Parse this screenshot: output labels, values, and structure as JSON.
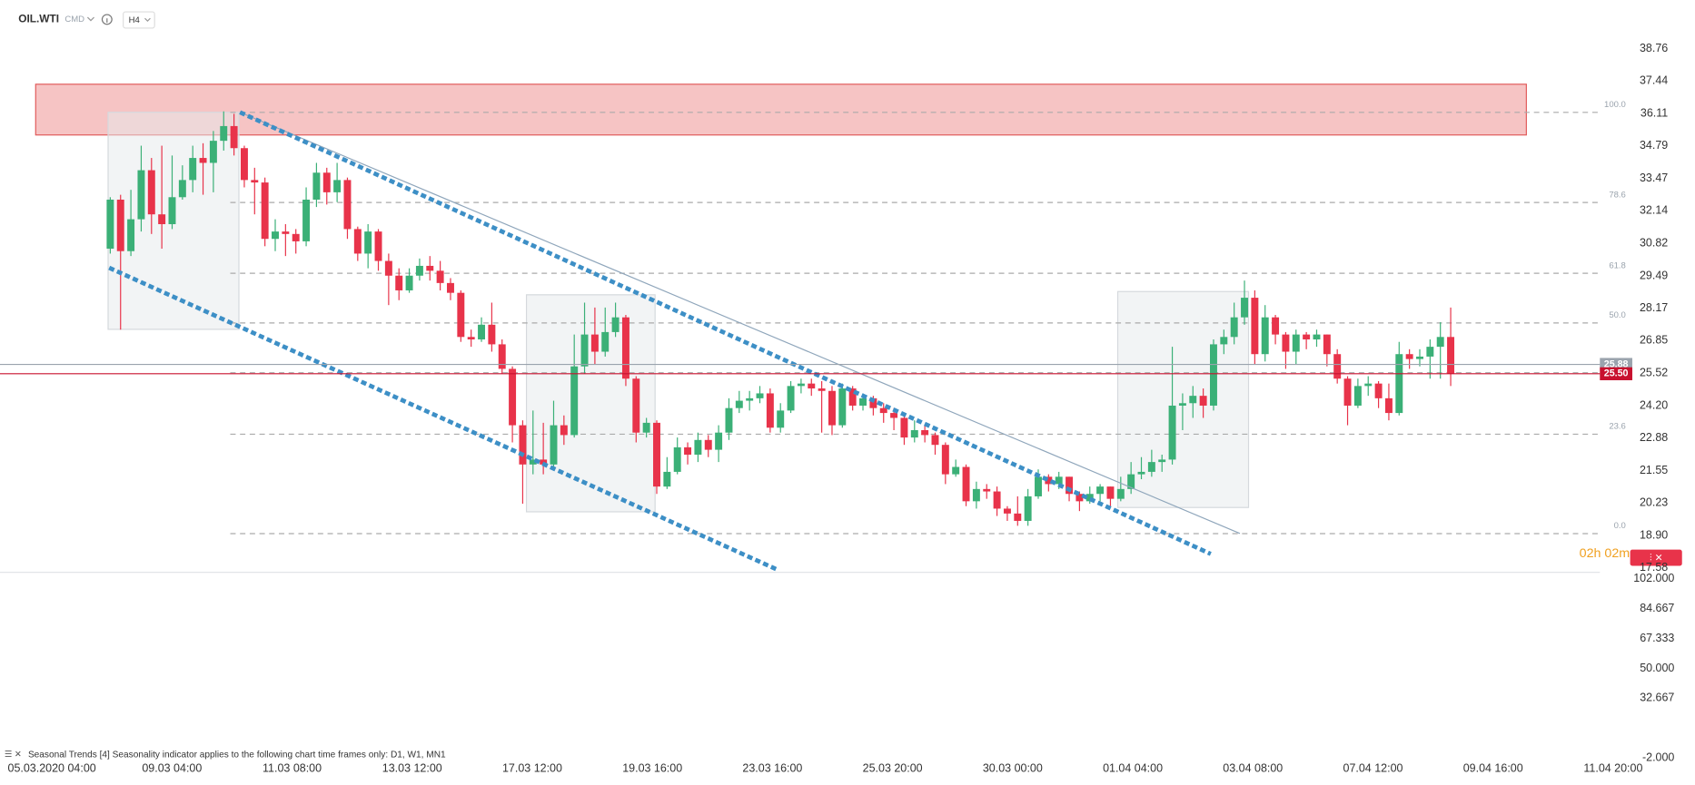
{
  "header": {
    "symbol": "OIL.WTI",
    "market": "CMD",
    "timeframe": "H4"
  },
  "chart_data": {
    "type": "candlestick",
    "open": [
      30.6,
      32.6,
      30.5,
      31.8,
      33.8,
      32.0,
      31.6,
      32.7,
      33.4,
      34.3,
      34.1,
      35.0,
      35.6,
      34.7,
      33.4,
      33.3,
      31.0,
      31.3,
      31.2,
      30.9,
      32.6,
      33.7,
      32.9,
      33.4,
      31.4,
      30.4,
      31.3,
      30.1,
      29.5,
      28.9,
      29.5,
      29.9,
      29.7,
      29.2,
      28.8,
      27.0,
      26.9,
      27.5,
      26.7,
      25.7,
      23.4,
      21.8,
      22.0,
      21.8,
      23.4,
      23.0,
      25.8,
      27.1,
      26.4,
      27.2,
      27.8,
      25.3,
      23.1,
      23.5,
      20.9,
      21.5,
      22.5,
      22.2,
      22.8,
      22.4,
      23.1,
      24.1,
      24.4,
      24.5,
      24.7,
      23.3,
      24.0,
      25.0,
      25.1,
      24.9,
      24.8,
      23.4,
      24.9,
      24.2,
      24.5,
      24.1,
      23.9,
      23.7,
      22.9,
      23.2,
      23.0,
      22.6,
      21.4,
      21.7,
      20.3,
      20.8,
      20.7,
      20.0,
      19.8,
      19.5,
      20.5,
      21.3,
      21.0,
      21.3,
      20.6,
      20.3,
      20.6,
      20.9,
      20.4,
      20.8,
      21.4,
      21.5,
      21.9,
      22.0,
      24.2,
      24.3,
      24.6,
      24.2,
      26.7,
      27.0,
      27.8,
      28.6,
      26.3,
      27.8,
      27.1,
      26.4,
      27.1,
      26.9,
      27.1,
      26.3,
      25.3,
      24.2,
      25.0,
      25.1,
      24.5,
      23.9,
      26.3,
      26.1,
      26.2,
      26.6,
      27.0
    ],
    "high": [
      32.7,
      32.8,
      33.0,
      34.8,
      34.3,
      34.8,
      34.4,
      34.0,
      34.8,
      34.9,
      35.4,
      36.2,
      36.1,
      34.8,
      33.9,
      33.5,
      31.8,
      31.6,
      31.4,
      33.1,
      34.1,
      33.9,
      34.1,
      33.5,
      31.5,
      31.6,
      31.4,
      30.4,
      29.8,
      29.8,
      30.2,
      30.3,
      30.1,
      29.4,
      28.9,
      27.3,
      27.8,
      28.4,
      26.9,
      25.8,
      23.6,
      24.0,
      23.5,
      24.4,
      23.8,
      27.1,
      28.4,
      28.2,
      28.2,
      28.4,
      27.9,
      25.4,
      23.7,
      23.6,
      22.1,
      22.9,
      22.7,
      23.1,
      23.0,
      23.4,
      24.5,
      24.8,
      24.8,
      25.0,
      24.9,
      24.3,
      25.2,
      25.3,
      25.3,
      25.2,
      25.0,
      25.1,
      25.0,
      24.7,
      24.6,
      24.3,
      24.1,
      23.9,
      23.6,
      23.4,
      23.1,
      22.7,
      22.0,
      21.8,
      21.1,
      21.0,
      20.9,
      20.1,
      20.5,
      20.8,
      21.6,
      21.4,
      21.5,
      21.3,
      20.7,
      20.9,
      21.0,
      20.9,
      21.3,
      21.9,
      22.1,
      22.4,
      22.2,
      26.6,
      24.7,
      25.0,
      24.9,
      26.9,
      27.3,
      28.4,
      29.3,
      28.9,
      28.3,
      27.9,
      27.2,
      27.3,
      27.2,
      27.3,
      27.1,
      26.5,
      25.4,
      25.3,
      25.4,
      25.2,
      25.1,
      26.8,
      26.5,
      26.5,
      26.9,
      27.6,
      28.2
    ],
    "low": [
      30.4,
      27.3,
      30.3,
      31.3,
      31.2,
      30.6,
      31.4,
      32.6,
      32.9,
      32.8,
      32.9,
      34.6,
      34.4,
      33.1,
      32.0,
      30.7,
      30.5,
      30.3,
      30.4,
      30.7,
      32.3,
      32.4,
      32.5,
      31.0,
      30.1,
      29.8,
      29.7,
      28.3,
      28.5,
      28.8,
      29.3,
      29.3,
      28.9,
      28.5,
      26.8,
      26.6,
      26.8,
      26.4,
      25.5,
      22.7,
      20.2,
      21.4,
      21.4,
      21.7,
      22.6,
      22.9,
      25.5,
      25.9,
      26.2,
      27.0,
      25.0,
      22.7,
      22.9,
      20.6,
      20.8,
      21.4,
      21.8,
      21.9,
      22.1,
      21.9,
      22.8,
      23.9,
      24.0,
      24.3,
      23.1,
      23.1,
      23.9,
      24.7,
      24.6,
      23.1,
      23.0,
      23.3,
      24.0,
      24.0,
      23.8,
      23.5,
      23.2,
      22.6,
      22.7,
      22.7,
      22.2,
      21.0,
      21.3,
      20.1,
      20.0,
      20.4,
      19.7,
      19.5,
      19.3,
      19.3,
      20.4,
      20.7,
      20.8,
      20.3,
      19.9,
      20.2,
      20.3,
      20.1,
      20.3,
      20.6,
      21.2,
      21.3,
      21.5,
      21.8,
      23.2,
      23.7,
      23.7,
      24.0,
      26.3,
      26.7,
      27.5,
      25.9,
      26.0,
      26.7,
      25.7,
      25.9,
      26.5,
      26.6,
      25.8,
      25.1,
      23.4,
      24.1,
      24.6,
      24.1,
      23.6,
      23.8,
      25.7,
      25.8,
      25.3,
      25.3,
      25.0
    ],
    "close": [
      32.6,
      30.5,
      31.8,
      33.8,
      32.0,
      31.6,
      32.7,
      33.4,
      34.3,
      34.1,
      35.0,
      35.6,
      34.7,
      33.4,
      33.3,
      31.0,
      31.3,
      31.2,
      30.9,
      32.6,
      33.7,
      32.9,
      33.4,
      31.4,
      30.4,
      31.3,
      30.1,
      29.5,
      28.9,
      29.5,
      29.9,
      29.7,
      29.2,
      28.8,
      27.0,
      26.9,
      27.5,
      26.7,
      25.7,
      23.4,
      21.8,
      22.0,
      21.8,
      23.4,
      23.0,
      25.8,
      27.1,
      26.4,
      27.2,
      27.8,
      25.3,
      23.1,
      23.5,
      20.9,
      21.5,
      22.5,
      22.2,
      22.8,
      22.4,
      23.1,
      24.1,
      24.4,
      24.5,
      24.7,
      23.3,
      24.0,
      25.0,
      25.1,
      24.9,
      24.8,
      23.4,
      24.9,
      24.2,
      24.5,
      24.1,
      23.9,
      23.7,
      22.9,
      23.2,
      23.0,
      22.6,
      21.4,
      21.7,
      20.3,
      20.8,
      20.7,
      20.0,
      19.8,
      19.5,
      20.5,
      21.3,
      21.0,
      21.3,
      20.6,
      20.3,
      20.6,
      20.9,
      20.4,
      20.8,
      21.4,
      21.5,
      21.9,
      22.0,
      24.2,
      24.3,
      24.6,
      24.2,
      26.7,
      27.0,
      27.8,
      28.6,
      26.3,
      27.8,
      27.1,
      26.4,
      27.1,
      26.9,
      27.1,
      26.3,
      25.3,
      24.2,
      25.0,
      25.1,
      24.5,
      23.9,
      26.3,
      26.1,
      26.2,
      26.6,
      27.0,
      25.5
    ],
    "up_color": "#3bb077",
    "down_color": "#e8334a",
    "ylim": [
      17.58,
      38.76
    ],
    "yticks": [
      38.76,
      37.44,
      36.11,
      34.79,
      33.47,
      32.14,
      30.82,
      29.49,
      28.17,
      26.85,
      25.52,
      {
        "value": 24.2,
        "label": "24.20"
      },
      22.88,
      21.55,
      20.23,
      {
        "value": 18.9,
        "label": "18.90"
      },
      17.58
    ],
    "x_labels": [
      "05.03.2020 04:00",
      "09.03 04:00",
      "11.03 08:00",
      "13.03 12:00",
      "17.03 12:00",
      "19.03 16:00",
      "23.03 16:00",
      "25.03 20:00",
      "30.03 00:00",
      "01.04 04:00",
      "03.04 08:00",
      "07.04 12:00",
      "09.04 16:00",
      "11.04 20:00"
    ],
    "fib_levels": [
      {
        "value": 100,
        "label": "100.0"
      },
      78.6,
      61.8,
      {
        "value": 50,
        "label": "50.0"
      },
      38.2,
      23.6,
      {
        "value": 0,
        "label": "0.0"
      }
    ],
    "fib_range": [
      18.98,
      36.16
    ],
    "price_labels": [
      {
        "value": 25.88,
        "color": "#9aa3ad"
      },
      {
        "value": {
          "value": 25.5,
          "label": "25.50"
        },
        "color": "#c8102e"
      }
    ],
    "countdown": "02h 02m"
  },
  "indicator": {
    "title": "Seasonal  Trends  [4]  Seasonality  indicator  applies  to  the  following  chart  time  frames  only:  D1,  W1,  MN1",
    "ylim": [
      -2,
      102
    ],
    "yticks": [
      {
        "value": 102,
        "label": "102.000"
      },
      84.667,
      67.333,
      {
        "value": 50,
        "label": "50.000"
      },
      32.667,
      {
        "value": -2,
        "label": "-2.000"
      }
    ]
  }
}
